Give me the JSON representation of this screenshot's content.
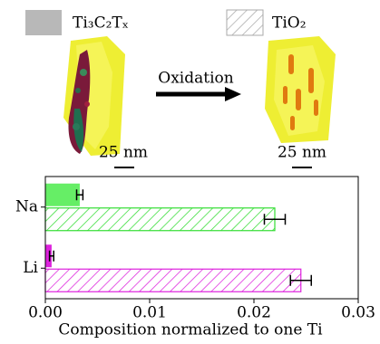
{
  "chart_data": {
    "type": "hbar",
    "categories": [
      "Na",
      "Li"
    ],
    "series": [
      {
        "name": "Ti₃C₂Tₓ",
        "style": "solid",
        "values": [
          0.0033,
          0.0006
        ],
        "errors": [
          0.0003,
          0.0002
        ],
        "colors": [
          "#66ee66",
          "#dd22dd"
        ]
      },
      {
        "name": "TiO₂",
        "style": "hatched",
        "values": [
          0.022,
          0.0245
        ],
        "errors": [
          0.001,
          0.001
        ],
        "colors": [
          "#33dd33",
          "#dd22dd"
        ]
      }
    ],
    "legend_color": "#b8b8b8",
    "xlabel": "Composition normalized to one Ti",
    "xlim": [
      0,
      0.03
    ],
    "xticks": [
      {
        "value": 0,
        "label": "0.00"
      },
      {
        "value": 0.01,
        "label": "0.01"
      },
      {
        "value": 0.02,
        "label": "0.02"
      },
      {
        "value": 0.03,
        "label": "0.03"
      }
    ]
  },
  "figure": {
    "arrow_label": "Oxidation",
    "scale_bars": [
      "25 nm",
      "25 nm"
    ]
  }
}
